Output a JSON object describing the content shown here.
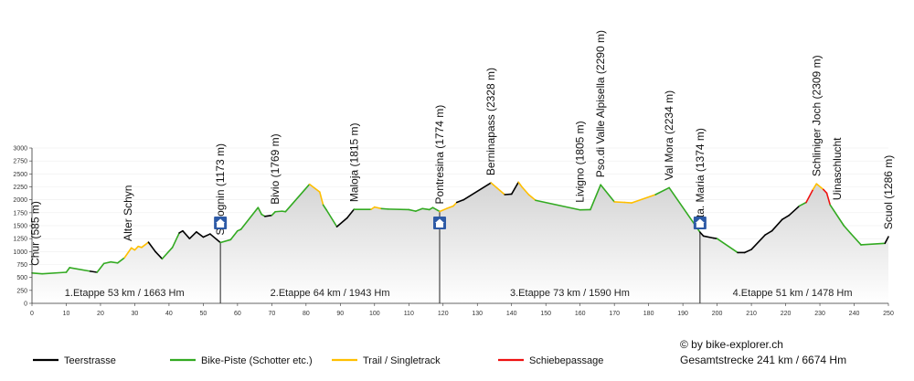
{
  "chart_data": {
    "type": "area",
    "xlim": [
      0,
      250
    ],
    "ylim": [
      0,
      3000
    ],
    "x_ticks": [
      0,
      10,
      20,
      30,
      40,
      50,
      60,
      70,
      80,
      90,
      100,
      110,
      120,
      130,
      140,
      150,
      160,
      170,
      180,
      190,
      200,
      210,
      220,
      230,
      240,
      250
    ],
    "y_ticks": [
      0,
      250,
      500,
      750,
      1000,
      1250,
      1500,
      1750,
      2000,
      2250,
      2500,
      2750,
      3000
    ],
    "profile": [
      {
        "x": 0,
        "y": 585,
        "s": "road"
      },
      {
        "x": 3,
        "y": 570,
        "s": "bike"
      },
      {
        "x": 10,
        "y": 600,
        "s": "bike"
      },
      {
        "x": 11,
        "y": 690,
        "s": "bike"
      },
      {
        "x": 17,
        "y": 620,
        "s": "bike"
      },
      {
        "x": 19,
        "y": 600,
        "s": "road"
      },
      {
        "x": 21,
        "y": 770,
        "s": "bike"
      },
      {
        "x": 23,
        "y": 800,
        "s": "bike"
      },
      {
        "x": 25,
        "y": 780,
        "s": "bike"
      },
      {
        "x": 27,
        "y": 880,
        "s": "bike"
      },
      {
        "x": 29,
        "y": 1070,
        "s": "trail"
      },
      {
        "x": 30,
        "y": 1030,
        "s": "trail"
      },
      {
        "x": 31,
        "y": 1100,
        "s": "trail"
      },
      {
        "x": 32,
        "y": 1080,
        "s": "trail"
      },
      {
        "x": 34,
        "y": 1180,
        "s": "trail"
      },
      {
        "x": 36,
        "y": 1000,
        "s": "road"
      },
      {
        "x": 38,
        "y": 860,
        "s": "road"
      },
      {
        "x": 41,
        "y": 1080,
        "s": "bike"
      },
      {
        "x": 43,
        "y": 1360,
        "s": "bike"
      },
      {
        "x": 44,
        "y": 1400,
        "s": "road"
      },
      {
        "x": 46,
        "y": 1250,
        "s": "road"
      },
      {
        "x": 48,
        "y": 1380,
        "s": "road"
      },
      {
        "x": 50,
        "y": 1280,
        "s": "road"
      },
      {
        "x": 52,
        "y": 1340,
        "s": "road"
      },
      {
        "x": 55,
        "y": 1173,
        "s": "road"
      },
      {
        "x": 58,
        "y": 1230,
        "s": "bike"
      },
      {
        "x": 60,
        "y": 1400,
        "s": "bike"
      },
      {
        "x": 61,
        "y": 1430,
        "s": "bike"
      },
      {
        "x": 66,
        "y": 1850,
        "s": "bike"
      },
      {
        "x": 67,
        "y": 1720,
        "s": "bike"
      },
      {
        "x": 68,
        "y": 1680,
        "s": "bike"
      },
      {
        "x": 70,
        "y": 1700,
        "s": "road"
      },
      {
        "x": 71,
        "y": 1769,
        "s": "bike"
      },
      {
        "x": 73,
        "y": 1780,
        "s": "bike"
      },
      {
        "x": 74,
        "y": 1770,
        "s": "bike"
      },
      {
        "x": 81,
        "y": 2300,
        "s": "bike"
      },
      {
        "x": 84,
        "y": 2150,
        "s": "trail"
      },
      {
        "x": 85,
        "y": 1900,
        "s": "trail"
      },
      {
        "x": 86,
        "y": 1800,
        "s": "bike"
      },
      {
        "x": 89,
        "y": 1480,
        "s": "bike"
      },
      {
        "x": 92,
        "y": 1650,
        "s": "road"
      },
      {
        "x": 94,
        "y": 1815,
        "s": "road"
      },
      {
        "x": 99,
        "y": 1815,
        "s": "bike"
      },
      {
        "x": 100,
        "y": 1860,
        "s": "trail"
      },
      {
        "x": 102,
        "y": 1830,
        "s": "trail"
      },
      {
        "x": 104,
        "y": 1820,
        "s": "bike"
      },
      {
        "x": 110,
        "y": 1810,
        "s": "bike"
      },
      {
        "x": 112,
        "y": 1780,
        "s": "bike"
      },
      {
        "x": 114,
        "y": 1830,
        "s": "bike"
      },
      {
        "x": 116,
        "y": 1810,
        "s": "bike"
      },
      {
        "x": 117,
        "y": 1850,
        "s": "bike"
      },
      {
        "x": 119,
        "y": 1774,
        "s": "bike"
      },
      {
        "x": 121,
        "y": 1830,
        "s": "trail"
      },
      {
        "x": 123,
        "y": 1880,
        "s": "trail"
      },
      {
        "x": 124,
        "y": 1950,
        "s": "trail"
      },
      {
        "x": 126,
        "y": 2000,
        "s": "road"
      },
      {
        "x": 134,
        "y": 2328,
        "s": "road"
      },
      {
        "x": 138,
        "y": 2100,
        "s": "trail"
      },
      {
        "x": 140,
        "y": 2110,
        "s": "road"
      },
      {
        "x": 142,
        "y": 2340,
        "s": "road"
      },
      {
        "x": 143,
        "y": 2250,
        "s": "trail"
      },
      {
        "x": 145,
        "y": 2100,
        "s": "trail"
      },
      {
        "x": 147,
        "y": 1990,
        "s": "trail"
      },
      {
        "x": 160,
        "y": 1805,
        "s": "bike"
      },
      {
        "x": 163,
        "y": 1810,
        "s": "bike"
      },
      {
        "x": 166,
        "y": 2290,
        "s": "bike"
      },
      {
        "x": 170,
        "y": 1960,
        "s": "bike"
      },
      {
        "x": 173,
        "y": 1950,
        "s": "trail"
      },
      {
        "x": 175,
        "y": 1940,
        "s": "trail"
      },
      {
        "x": 182,
        "y": 2100,
        "s": "trail"
      },
      {
        "x": 186,
        "y": 2234,
        "s": "bike"
      },
      {
        "x": 195,
        "y": 1374,
        "s": "bike"
      },
      {
        "x": 196,
        "y": 1300,
        "s": "road"
      },
      {
        "x": 199,
        "y": 1260,
        "s": "road"
      },
      {
        "x": 200,
        "y": 1250,
        "s": "road"
      },
      {
        "x": 206,
        "y": 980,
        "s": "bike"
      },
      {
        "x": 208,
        "y": 980,
        "s": "road"
      },
      {
        "x": 210,
        "y": 1040,
        "s": "road"
      },
      {
        "x": 213,
        "y": 1250,
        "s": "road"
      },
      {
        "x": 214,
        "y": 1320,
        "s": "road"
      },
      {
        "x": 216,
        "y": 1400,
        "s": "road"
      },
      {
        "x": 219,
        "y": 1620,
        "s": "road"
      },
      {
        "x": 221,
        "y": 1700,
        "s": "road"
      },
      {
        "x": 224,
        "y": 1880,
        "s": "road"
      },
      {
        "x": 226,
        "y": 1950,
        "s": "bike"
      },
      {
        "x": 228,
        "y": 2200,
        "s": "push"
      },
      {
        "x": 229,
        "y": 2309,
        "s": "trail"
      },
      {
        "x": 231,
        "y": 2200,
        "s": "trail"
      },
      {
        "x": 232,
        "y": 2130,
        "s": "push"
      },
      {
        "x": 233,
        "y": 1900,
        "s": "push"
      },
      {
        "x": 237,
        "y": 1500,
        "s": "bike"
      },
      {
        "x": 239,
        "y": 1350,
        "s": "bike"
      },
      {
        "x": 242,
        "y": 1130,
        "s": "bike"
      },
      {
        "x": 249,
        "y": 1160,
        "s": "bike"
      },
      {
        "x": 250,
        "y": 1286,
        "s": "road"
      }
    ],
    "places": [
      {
        "label": "Chur (585 m)",
        "x": 1,
        "y": 585
      },
      {
        "label": "Alter Schyn",
        "x": 28,
        "y": 1060
      },
      {
        "label": "Savognin (1173 m)",
        "x": 55,
        "y": 1173
      },
      {
        "label": "Bivio (1769 m)",
        "x": 71,
        "y": 1769
      },
      {
        "label": "Maloja (1815 m)",
        "x": 94,
        "y": 1815
      },
      {
        "label": "Pontresina (1774 m)",
        "x": 119,
        "y": 1774
      },
      {
        "label": "Berninapass (2328 m)",
        "x": 134,
        "y": 2328
      },
      {
        "label": "Livigno (1805 m)",
        "x": 160,
        "y": 1805
      },
      {
        "label": "Pso.di Valle Alpisella (2290 m)",
        "x": 166,
        "y": 2290
      },
      {
        "label": "Val Mora (2234 m)",
        "x": 186,
        "y": 2234
      },
      {
        "label": "Sta. Maria (1374 m)",
        "x": 195,
        "y": 1374
      },
      {
        "label": "Schliniger Joch (2309 m)",
        "x": 229,
        "y": 2309
      },
      {
        "label": "Uinaschlucht",
        "x": 235,
        "y": 1850
      },
      {
        "label": "Scuol (1286 m)",
        "x": 250,
        "y": 1286
      }
    ],
    "hotels": [
      55,
      119,
      195
    ],
    "stage_breaks": [
      55,
      119,
      195
    ],
    "stages": [
      {
        "label": "1.Etappe 53 km / 1663 Hm",
        "x": 27
      },
      {
        "label": "2.Etappe 64 km / 1943 Hm",
        "x": 87
      },
      {
        "label": "3.Etappe 73 km / 1590 Hm",
        "x": 157
      },
      {
        "label": "4.Etappe 51 km / 1478 Hm",
        "x": 222
      }
    ],
    "legend": [
      {
        "label": "Teerstrasse",
        "color": "#000000"
      },
      {
        "label": "Bike-Piste (Schotter etc.)",
        "color": "#33aa22"
      },
      {
        "label": "Trail / Singletrack",
        "color": "#ffbf00"
      },
      {
        "label": "Schiebepassage",
        "color": "#ee1111"
      }
    ],
    "credit": "© by bike-explorer.ch",
    "total": "Gesamtstrecke 241 km / 6674 Hm",
    "colors": {
      "road": "#000000",
      "bike": "#33aa22",
      "trail": "#ffbf00",
      "push": "#ee1111",
      "fill_top": "#d4d4d4",
      "fill_bottom": "#ffffff"
    }
  }
}
